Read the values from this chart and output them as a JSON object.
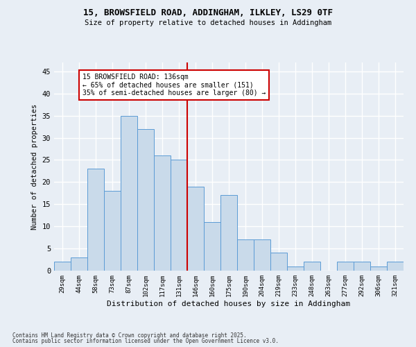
{
  "title1": "15, BROWSFIELD ROAD, ADDINGHAM, ILKLEY, LS29 0TF",
  "title2": "Size of property relative to detached houses in Addingham",
  "xlabel": "Distribution of detached houses by size in Addingham",
  "ylabel": "Number of detached properties",
  "categories": [
    "29sqm",
    "44sqm",
    "58sqm",
    "73sqm",
    "87sqm",
    "102sqm",
    "117sqm",
    "131sqm",
    "146sqm",
    "160sqm",
    "175sqm",
    "190sqm",
    "204sqm",
    "219sqm",
    "233sqm",
    "248sqm",
    "263sqm",
    "277sqm",
    "292sqm",
    "306sqm",
    "321sqm"
  ],
  "values": [
    2,
    3,
    23,
    18,
    35,
    32,
    26,
    25,
    19,
    11,
    17,
    7,
    7,
    4,
    1,
    2,
    0,
    2,
    2,
    1,
    2
  ],
  "bar_color": "#c9daea",
  "bar_edge_color": "#5b9bd5",
  "annotation_text": "15 BROWSFIELD ROAD: 136sqm\n← 65% of detached houses are smaller (151)\n35% of semi-detached houses are larger (80) →",
  "annotation_box_color": "#ffffff",
  "annotation_box_edge": "#cc0000",
  "annotation_text_color": "#000000",
  "vline_color": "#cc0000",
  "vline_bin": 7,
  "background_color": "#e8eef5",
  "grid_color": "#ffffff",
  "ylim": [
    0,
    47
  ],
  "yticks": [
    0,
    5,
    10,
    15,
    20,
    25,
    30,
    35,
    40,
    45
  ],
  "footer1": "Contains HM Land Registry data © Crown copyright and database right 2025.",
  "footer2": "Contains public sector information licensed under the Open Government Licence v3.0."
}
